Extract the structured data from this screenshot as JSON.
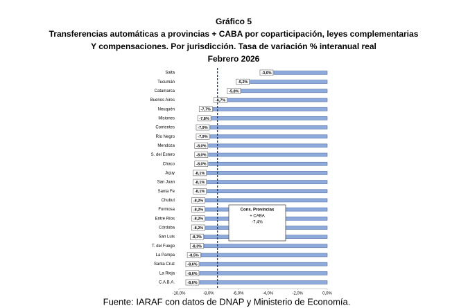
{
  "chart_data": {
    "type": "bar",
    "orientation": "horizontal",
    "title": [
      "Gráfico 5",
      "Transferencias automáticas  a provincias  + CABA por coparticipación,  leyes complementarias",
      "Y compensaciones.  Por jurisdicción. Tasa de variación  % interanual  real",
      "Febrero 2026"
    ],
    "categories": [
      "Salta",
      "Tucumán",
      "Catamarca",
      "Buenos Aires",
      "Neuquén",
      "Misiones",
      "Corrientes",
      "Río Negro",
      "Mendoza",
      "S. del Estero",
      "Chaco",
      "Jujuy",
      "San Juan",
      "Santa Fe",
      "Chubut",
      "Formosa",
      "Entre Ríos",
      "Córdoba",
      "San Luis",
      "T. del Fuego",
      "La Pampa",
      "Santa Cruz",
      "La Rioja",
      "C.A.B.A."
    ],
    "values": [
      -3.6,
      -5.2,
      -5.8,
      -6.7,
      -7.7,
      -7.8,
      -7.9,
      -7.9,
      -8.0,
      -8.0,
      -8.0,
      -8.1,
      -8.1,
      -8.1,
      -8.2,
      -8.2,
      -8.2,
      -8.2,
      -8.3,
      -8.3,
      -8.5,
      -8.6,
      -8.6,
      -8.6
    ],
    "value_labels": [
      "-3,6%",
      "-5,2%",
      "-5,8%",
      "-6,7%",
      "-7,7%",
      "-7,8%",
      "-7,9%",
      "-7,9%",
      "-8,0%",
      "-8,0%",
      "-8,0%",
      "-8,1%",
      "-8,1%",
      "-8,1%",
      "-8,2%",
      "-8,2%",
      "-8,2%",
      "-8,2%",
      "-8,3%",
      "-8,3%",
      "-8,5%",
      "-8,6%",
      "-8,6%",
      "-8,6%"
    ],
    "color": "#8eaadb",
    "xlim": [
      -10,
      0
    ],
    "xticks": [
      {
        "value": -10,
        "label": "-10,0%"
      },
      {
        "value": -8,
        "label": "-8,0%"
      },
      {
        "value": -6,
        "label": "-6,0%"
      },
      {
        "value": -4,
        "label": "-4,0%"
      },
      {
        "value": -2,
        "label": "-2,0%"
      },
      {
        "value": 0,
        "label": "0,0%"
      }
    ],
    "reference_line": {
      "value": -7.4,
      "label": [
        "Cons. Provincias",
        "+ CABA",
        "-7,4%"
      ]
    },
    "source": "Fuente: IARAF con datos de DNAP y Ministerio de Economía."
  }
}
